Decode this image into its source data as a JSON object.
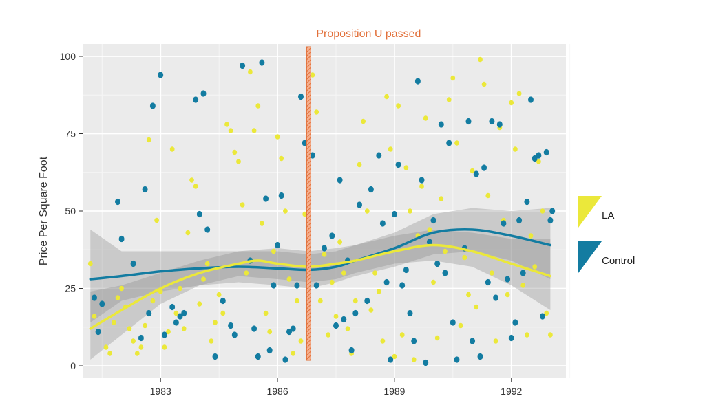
{
  "chart_data": {
    "type": "scatter",
    "title": "",
    "xlabel": "",
    "ylabel": "Price Per Square Foot",
    "xlim": [
      1981.0,
      1993.4
    ],
    "ylim": [
      -4,
      104
    ],
    "x_ticks": [
      1983,
      1986,
      1989,
      1992
    ],
    "y_ticks": [
      0,
      25,
      50,
      75,
      100
    ],
    "grid": true,
    "legend_position": "right",
    "annotation": {
      "label": "Proposition U passed",
      "x": 1986.8,
      "color": "#e2703a"
    },
    "series": [
      {
        "name": "LA",
        "color": "#ebe83a",
        "points": [
          [
            1981.2,
            33
          ],
          [
            1981.3,
            16
          ],
          [
            1981.4,
            11
          ],
          [
            1981.6,
            6
          ],
          [
            1981.7,
            4
          ],
          [
            1981.8,
            14
          ],
          [
            1981.9,
            22
          ],
          [
            1982.0,
            25
          ],
          [
            1982.1,
            19
          ],
          [
            1982.2,
            12
          ],
          [
            1982.3,
            8
          ],
          [
            1982.4,
            4
          ],
          [
            1982.5,
            6
          ],
          [
            1982.6,
            13
          ],
          [
            1982.7,
            73
          ],
          [
            1982.8,
            21
          ],
          [
            1982.9,
            47
          ],
          [
            1983.0,
            24
          ],
          [
            1983.1,
            6
          ],
          [
            1983.2,
            11
          ],
          [
            1983.3,
            70
          ],
          [
            1983.4,
            17
          ],
          [
            1983.5,
            25
          ],
          [
            1983.6,
            12
          ],
          [
            1983.7,
            43
          ],
          [
            1983.8,
            60
          ],
          [
            1983.9,
            58
          ],
          [
            1984.0,
            20
          ],
          [
            1984.1,
            28
          ],
          [
            1984.2,
            33
          ],
          [
            1984.3,
            8
          ],
          [
            1984.4,
            14
          ],
          [
            1984.5,
            23
          ],
          [
            1984.6,
            17
          ],
          [
            1984.7,
            78
          ],
          [
            1984.8,
            76
          ],
          [
            1984.9,
            69
          ],
          [
            1985.0,
            66
          ],
          [
            1985.1,
            52
          ],
          [
            1985.2,
            30
          ],
          [
            1985.3,
            95
          ],
          [
            1985.4,
            76
          ],
          [
            1985.5,
            84
          ],
          [
            1985.6,
            46
          ],
          [
            1985.7,
            17
          ],
          [
            1985.8,
            11
          ],
          [
            1985.9,
            37
          ],
          [
            1986.0,
            74
          ],
          [
            1986.1,
            67
          ],
          [
            1986.2,
            50
          ],
          [
            1986.3,
            28
          ],
          [
            1986.4,
            4
          ],
          [
            1986.5,
            21
          ],
          [
            1986.6,
            8
          ],
          [
            1986.7,
            49
          ],
          [
            1986.9,
            94
          ],
          [
            1987.0,
            82
          ],
          [
            1987.1,
            21
          ],
          [
            1987.2,
            36
          ],
          [
            1987.3,
            10
          ],
          [
            1987.4,
            27
          ],
          [
            1987.5,
            16
          ],
          [
            1987.6,
            40
          ],
          [
            1987.7,
            30
          ],
          [
            1987.8,
            12
          ],
          [
            1987.9,
            4
          ],
          [
            1988.0,
            21
          ],
          [
            1988.1,
            65
          ],
          [
            1988.2,
            79
          ],
          [
            1988.3,
            50
          ],
          [
            1988.4,
            18
          ],
          [
            1988.5,
            30
          ],
          [
            1988.6,
            24
          ],
          [
            1988.7,
            8
          ],
          [
            1988.8,
            87
          ],
          [
            1988.9,
            70
          ],
          [
            1989.0,
            3
          ],
          [
            1989.1,
            84
          ],
          [
            1989.2,
            10
          ],
          [
            1989.3,
            64
          ],
          [
            1989.4,
            50
          ],
          [
            1989.5,
            2
          ],
          [
            1989.6,
            42
          ],
          [
            1989.7,
            58
          ],
          [
            1989.8,
            80
          ],
          [
            1989.9,
            44
          ],
          [
            1990.0,
            27
          ],
          [
            1990.1,
            9
          ],
          [
            1990.2,
            54
          ],
          [
            1990.3,
            37
          ],
          [
            1990.4,
            86
          ],
          [
            1990.5,
            93
          ],
          [
            1990.6,
            72
          ],
          [
            1990.7,
            13
          ],
          [
            1990.8,
            35
          ],
          [
            1990.9,
            23
          ],
          [
            1991.0,
            63
          ],
          [
            1991.1,
            19
          ],
          [
            1991.2,
            99
          ],
          [
            1991.3,
            91
          ],
          [
            1991.4,
            55
          ],
          [
            1991.5,
            30
          ],
          [
            1991.6,
            8
          ],
          [
            1991.7,
            77
          ],
          [
            1991.8,
            47
          ],
          [
            1991.9,
            23
          ],
          [
            1992.0,
            85
          ],
          [
            1992.1,
            70
          ],
          [
            1992.2,
            88
          ],
          [
            1992.3,
            26
          ],
          [
            1992.4,
            10
          ],
          [
            1992.5,
            42
          ],
          [
            1992.6,
            32
          ],
          [
            1992.7,
            66
          ],
          [
            1992.8,
            50
          ],
          [
            1992.9,
            17
          ],
          [
            1993.0,
            10
          ]
        ],
        "trend": [
          [
            1981.2,
            12
          ],
          [
            1982.0,
            18
          ],
          [
            1983.0,
            25
          ],
          [
            1984.0,
            30
          ],
          [
            1985.0,
            33
          ],
          [
            1985.5,
            34
          ],
          [
            1986.0,
            33
          ],
          [
            1986.8,
            32
          ],
          [
            1987.5,
            33
          ],
          [
            1988.0,
            34
          ],
          [
            1989.0,
            37
          ],
          [
            1990.0,
            39
          ],
          [
            1991.0,
            37
          ],
          [
            1992.0,
            33
          ],
          [
            1993.0,
            29
          ]
        ],
        "band": [
          [
            1981.2,
            2,
            24
          ],
          [
            1982.0,
            10,
            26
          ],
          [
            1983.0,
            20,
            30
          ],
          [
            1984.0,
            26,
            34
          ],
          [
            1985.0,
            29,
            37
          ],
          [
            1986.0,
            28,
            38
          ],
          [
            1986.8,
            27,
            37
          ],
          [
            1987.5,
            28,
            38
          ],
          [
            1988.0,
            30,
            39
          ],
          [
            1989.0,
            33,
            42
          ],
          [
            1990.0,
            34,
            44
          ],
          [
            1991.0,
            32,
            43
          ],
          [
            1992.0,
            26,
            41
          ],
          [
            1993.0,
            18,
            41
          ]
        ]
      },
      {
        "name": "Control",
        "color": "#137ca1",
        "points": [
          [
            1981.3,
            22
          ],
          [
            1981.4,
            11
          ],
          [
            1981.5,
            20
          ],
          [
            1981.9,
            53
          ],
          [
            1982.0,
            41
          ],
          [
            1982.3,
            33
          ],
          [
            1982.5,
            9
          ],
          [
            1982.6,
            57
          ],
          [
            1982.7,
            17
          ],
          [
            1982.8,
            84
          ],
          [
            1983.0,
            94
          ],
          [
            1983.1,
            10
          ],
          [
            1983.3,
            19
          ],
          [
            1983.4,
            14
          ],
          [
            1983.5,
            16
          ],
          [
            1983.6,
            17
          ],
          [
            1983.9,
            86
          ],
          [
            1984.0,
            49
          ],
          [
            1984.1,
            88
          ],
          [
            1984.2,
            44
          ],
          [
            1984.4,
            3
          ],
          [
            1984.6,
            21
          ],
          [
            1984.8,
            13
          ],
          [
            1984.9,
            10
          ],
          [
            1985.1,
            97
          ],
          [
            1985.3,
            34
          ],
          [
            1985.4,
            12
          ],
          [
            1985.5,
            3
          ],
          [
            1985.6,
            98
          ],
          [
            1985.7,
            54
          ],
          [
            1985.8,
            5
          ],
          [
            1985.9,
            26
          ],
          [
            1986.0,
            39
          ],
          [
            1986.1,
            55
          ],
          [
            1986.2,
            2
          ],
          [
            1986.3,
            11
          ],
          [
            1986.4,
            12
          ],
          [
            1986.5,
            26
          ],
          [
            1986.6,
            87
          ],
          [
            1986.7,
            72
          ],
          [
            1986.9,
            68
          ],
          [
            1987.0,
            26
          ],
          [
            1987.2,
            38
          ],
          [
            1987.4,
            42
          ],
          [
            1987.5,
            13
          ],
          [
            1987.6,
            60
          ],
          [
            1987.7,
            15
          ],
          [
            1987.8,
            34
          ],
          [
            1987.9,
            5
          ],
          [
            1988.0,
            17
          ],
          [
            1988.1,
            52
          ],
          [
            1988.3,
            21
          ],
          [
            1988.4,
            57
          ],
          [
            1988.6,
            68
          ],
          [
            1988.7,
            46
          ],
          [
            1988.8,
            27
          ],
          [
            1988.9,
            2
          ],
          [
            1989.0,
            49
          ],
          [
            1989.1,
            65
          ],
          [
            1989.2,
            26
          ],
          [
            1989.3,
            31
          ],
          [
            1989.4,
            17
          ],
          [
            1989.5,
            8
          ],
          [
            1989.6,
            92
          ],
          [
            1989.7,
            60
          ],
          [
            1989.8,
            1
          ],
          [
            1989.9,
            40
          ],
          [
            1990.0,
            47
          ],
          [
            1990.1,
            33
          ],
          [
            1990.2,
            78
          ],
          [
            1990.3,
            30
          ],
          [
            1990.4,
            72
          ],
          [
            1990.5,
            14
          ],
          [
            1990.6,
            2
          ],
          [
            1990.8,
            38
          ],
          [
            1990.9,
            79
          ],
          [
            1991.0,
            8
          ],
          [
            1991.1,
            62
          ],
          [
            1991.2,
            3
          ],
          [
            1991.3,
            64
          ],
          [
            1991.4,
            27
          ],
          [
            1991.5,
            79
          ],
          [
            1991.6,
            22
          ],
          [
            1991.7,
            78
          ],
          [
            1991.8,
            46
          ],
          [
            1991.9,
            28
          ],
          [
            1992.0,
            9
          ],
          [
            1992.1,
            14
          ],
          [
            1992.2,
            47
          ],
          [
            1992.3,
            30
          ],
          [
            1992.4,
            53
          ],
          [
            1992.5,
            86
          ],
          [
            1992.6,
            67
          ],
          [
            1992.7,
            68
          ],
          [
            1992.8,
            16
          ],
          [
            1992.9,
            69
          ],
          [
            1993.0,
            47
          ],
          [
            1993.05,
            50
          ]
        ],
        "trend": [
          [
            1981.2,
            28
          ],
          [
            1982.0,
            29
          ],
          [
            1983.0,
            30.5
          ],
          [
            1984.0,
            31.5
          ],
          [
            1985.0,
            32
          ],
          [
            1986.0,
            31.5
          ],
          [
            1986.8,
            31
          ],
          [
            1987.5,
            32
          ],
          [
            1988.0,
            34
          ],
          [
            1989.0,
            38
          ],
          [
            1990.0,
            43
          ],
          [
            1991.0,
            44
          ],
          [
            1992.0,
            42
          ],
          [
            1993.0,
            39
          ]
        ],
        "band": [
          [
            1981.2,
            14,
            44
          ],
          [
            1982.0,
            21,
            37
          ],
          [
            1983.0,
            24,
            37
          ],
          [
            1984.0,
            26,
            37
          ],
          [
            1985.0,
            27,
            37
          ],
          [
            1986.0,
            26,
            37
          ],
          [
            1986.8,
            25,
            36
          ],
          [
            1987.5,
            27,
            37
          ],
          [
            1988.0,
            29,
            39
          ],
          [
            1989.0,
            32,
            43
          ],
          [
            1990.0,
            36,
            49
          ],
          [
            1991.0,
            37,
            51
          ],
          [
            1992.0,
            34,
            50
          ],
          [
            1993.0,
            28,
            51
          ]
        ]
      }
    ]
  }
}
